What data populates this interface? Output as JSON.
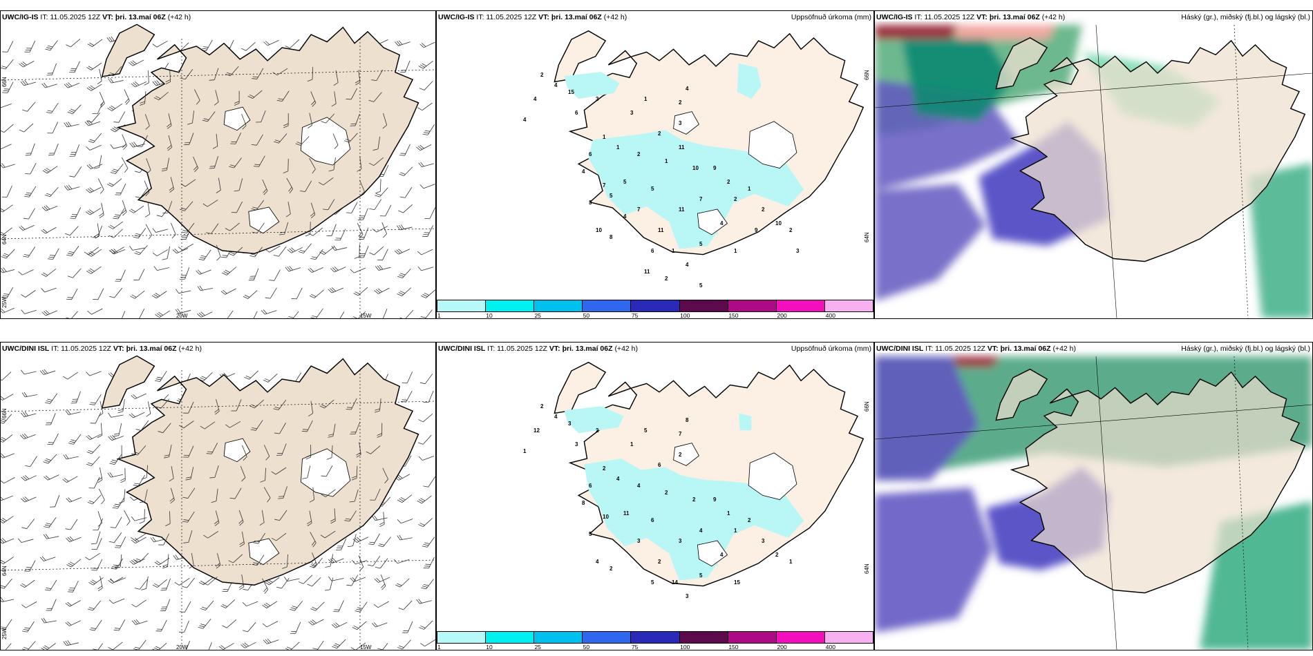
{
  "panels": [
    {
      "id": "p1",
      "model": "UWC/IG-IS",
      "it": "IT: 11.05.2025 12Z",
      "vt_label": "VT:",
      "vt": "þri. 13.maí 06Z",
      "lead": "(+42 h)",
      "right_title": "",
      "lon_labels": [
        "20W",
        "15W"
      ],
      "lat_labels": [
        "66N",
        "64N",
        "25W"
      ]
    },
    {
      "id": "p2",
      "model": "UWC/IG-IS",
      "it": "IT: 11.05.2025 12Z",
      "vt_label": "VT:",
      "vt": "þri. 13.maí 06Z",
      "lead": "(+42 h)",
      "right_title": "Uppsöfnuð úrkoma (mm)",
      "lat_labels": [
        "66N",
        "64N"
      ]
    },
    {
      "id": "p3",
      "model": "UWC/IG-IS",
      "it": "IT: 11.05.2025 12Z",
      "vt_label": "VT:",
      "vt": "þri. 13.maí 06Z",
      "lead": "(+42 h)",
      "right_title": "Háský (gr.), miðský (fj.bl.) og lágský (bl.)"
    },
    {
      "id": "p4",
      "model": "UWC/DINI ISL",
      "it": "IT: 11.05.2025 12Z",
      "vt_label": "VT:",
      "vt": "þri. 13.maí 06Z",
      "lead": "(+42 h)",
      "right_title": "",
      "lon_labels": [
        "20W",
        "15W"
      ],
      "lat_labels": [
        "66N",
        "64N",
        "25W"
      ]
    },
    {
      "id": "p5",
      "model": "UWC/DINI ISL",
      "it": "IT: 11.05.2025 12Z",
      "vt_label": "VT:",
      "vt": "þri. 13.maí 06Z",
      "lead": "(+42 h)",
      "right_title": "Uppsöfnuð úrkoma (mm)",
      "lat_labels": [
        "66N",
        "64N"
      ]
    },
    {
      "id": "p6",
      "model": "UWC/DINI ISL",
      "it": "IT: 11.05.2025 12Z",
      "vt_label": "VT:",
      "vt": "þri. 13.maí 06Z",
      "lead": "(+42 h)",
      "right_title": "Háský (gr.), miðský (fj.bl.) og lágský (bl.)"
    }
  ],
  "precip_colorbar": {
    "ticks": [
      "1",
      "10",
      "25",
      "50",
      "75",
      "100",
      "150",
      "200",
      "400"
    ],
    "colors": [
      "#b7f8f8",
      "#00f0f0",
      "#00c0ee",
      "#2f68ee",
      "#2a2ab8",
      "#5c0a4c",
      "#ad0a85",
      "#f30fbe",
      "#f7b0f0"
    ]
  },
  "precip_labels_top": [
    "4",
    "2",
    "4",
    "15",
    "6",
    "3",
    "4",
    "1",
    "3",
    "1",
    "3",
    "2",
    "4",
    "2",
    "1",
    "1",
    "2",
    "6",
    "4",
    "7",
    "5",
    "5",
    "7",
    "3",
    "10",
    "11",
    "8",
    "11",
    "7",
    "9",
    "2",
    "2",
    "1",
    "10",
    "4",
    "5",
    "4",
    "1",
    "6",
    "1",
    "2",
    "10",
    "2",
    "3",
    "11",
    "2",
    "5",
    "4",
    "5",
    "11",
    "9"
  ],
  "precip_labels_bottom": [
    "4",
    "2",
    "12",
    "3",
    "3",
    "2",
    "1",
    "2",
    "1",
    "5",
    "2",
    "7",
    "8",
    "6",
    "2",
    "4",
    "4",
    "6",
    "8",
    "10",
    "11",
    "6",
    "3",
    "5",
    "4",
    "2",
    "2",
    "3",
    "4",
    "9",
    "1",
    "1",
    "2",
    "2",
    "4",
    "5",
    "3",
    "14",
    "5",
    "15",
    "3",
    "2",
    "1"
  ]
}
